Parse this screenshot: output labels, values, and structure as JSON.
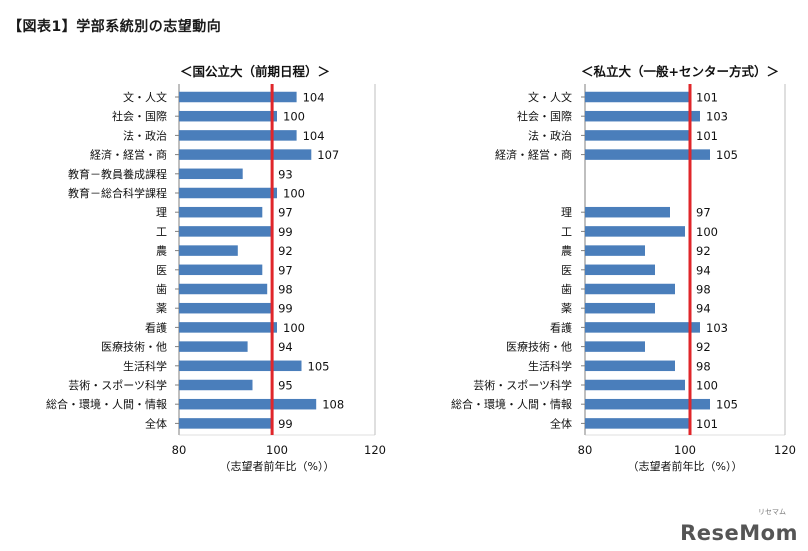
{
  "figure_title": "【図表1】学部系統別の志望動向",
  "brand": "ReseMom",
  "brand_ruby": "リセマム",
  "chart_data": [
    {
      "type": "bar",
      "orientation": "horizontal",
      "title": "＜国公立大（前期日程）＞",
      "xlabel": "（志望者前年比（%））",
      "xlim": [
        80,
        120
      ],
      "xticks": [
        80,
        100,
        120
      ],
      "reference_line": 99,
      "bar_color": "#4a7ebb",
      "reference_color": "#e0262a",
      "categories": [
        "文・人文",
        "社会・国際",
        "法・政治",
        "経済・経営・商",
        "教育－教員養成課程",
        "教育－総合科学課程",
        "理",
        "工",
        "農",
        "医",
        "歯",
        "薬",
        "看護",
        "医療技術・他",
        "生活科学",
        "芸術・スポーツ科学",
        "総合・環境・人間・情報",
        "全体"
      ],
      "values": [
        104,
        100,
        104,
        107,
        93,
        100,
        97,
        99,
        92,
        97,
        98,
        99,
        100,
        94,
        105,
        95,
        108,
        99
      ]
    },
    {
      "type": "bar",
      "orientation": "horizontal",
      "title": "＜私立大（一般+センター方式）＞",
      "xlabel": "（志望者前年比（%））",
      "xlim": [
        80,
        120
      ],
      "xticks": [
        80,
        100,
        120
      ],
      "reference_line": 101,
      "bar_color": "#4a7ebb",
      "reference_color": "#e0262a",
      "categories": [
        "文・人文",
        "社会・国際",
        "法・政治",
        "経済・経営・商",
        "",
        "",
        "理",
        "工",
        "農",
        "医",
        "歯",
        "薬",
        "看護",
        "医療技術・他",
        "生活科学",
        "芸術・スポーツ科学",
        "総合・環境・人間・情報",
        "全体"
      ],
      "values": [
        101,
        103,
        101,
        105,
        null,
        null,
        97,
        100,
        92,
        94,
        98,
        94,
        103,
        92,
        98,
        100,
        105,
        101
      ]
    }
  ]
}
